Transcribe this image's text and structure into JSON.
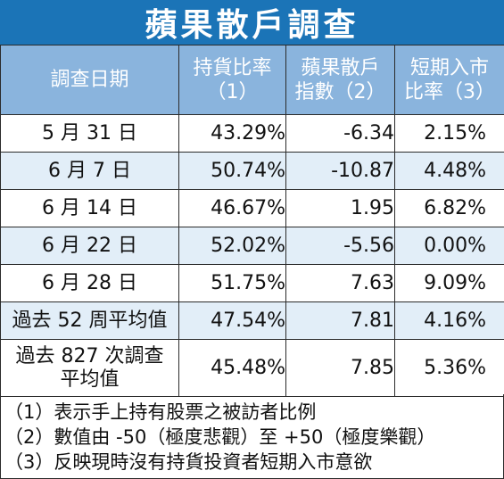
{
  "title": "蘋果散戶調查",
  "headers": [
    {
      "line1": "調查日期",
      "line2": ""
    },
    {
      "line1": "持貨比率",
      "line2": "（1）"
    },
    {
      "line1": "蘋果散戶",
      "line2": "指數（2）"
    },
    {
      "line1": "短期入市",
      "line2": "比率（3）"
    }
  ],
  "rows": [
    {
      "date": "5 月 31 日",
      "date2": "",
      "holding": "43.29%",
      "index": "-6.34",
      "short_term": "2.15%"
    },
    {
      "date": "6 月 7 日",
      "date2": "",
      "holding": "50.74%",
      "index": "-10.87",
      "short_term": "4.48%"
    },
    {
      "date": "6 月 14 日",
      "date2": "",
      "holding": "46.67%",
      "index": "1.95",
      "short_term": "6.82%"
    },
    {
      "date": "6 月 22 日",
      "date2": "",
      "holding": "52.02%",
      "index": "-5.56",
      "short_term": "0.00%"
    },
    {
      "date": "6 月 28 日",
      "date2": "",
      "holding": "51.75%",
      "index": "7.63",
      "short_term": "9.09%"
    },
    {
      "date": "過去 52 周平均值",
      "date2": "",
      "holding": "47.54%",
      "index": "7.81",
      "short_term": "4.16%"
    },
    {
      "date": "過去 827 次調查",
      "date2": "平均值",
      "holding": "45.48%",
      "index": "7.85",
      "short_term": "5.36%"
    }
  ],
  "notes": [
    "（1）表示手上持有股票之被訪者比例",
    "（2）數值由 -50（極度悲觀）至 +50（極度樂觀）",
    "（3）反映現時沒有持貨投資者短期入市意欲"
  ],
  "colors": {
    "title_bg": "#1b74b7",
    "header_bg": "#8ab4dd",
    "stripe_bg": "#e2eef8"
  }
}
